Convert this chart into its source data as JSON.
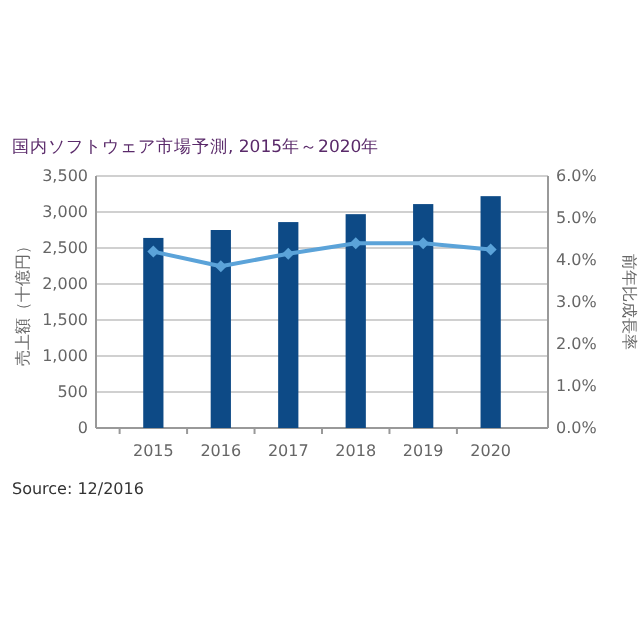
{
  "chart_data": {
    "type": "bar",
    "title": "国内ソフトウェア市場予測, 2015年～2020年",
    "categories": [
      "2015",
      "2016",
      "2017",
      "2018",
      "2019",
      "2020"
    ],
    "series": [
      {
        "color": "#0d4a86",
        "values": [
          2640,
          2750,
          2860,
          2970,
          3110,
          3220
        ]
      },
      {
        "type": "line",
        "axis": "y2",
        "color": "#5ba3d9",
        "marker": "diamond",
        "values": [
          4.2,
          3.85,
          4.15,
          4.4,
          4.4,
          4.25
        ]
      }
    ],
    "ylabel": "売上額（十億円）",
    "y2label": "前年比成長率",
    "ylim": [
      0,
      3500
    ],
    "yticks": [
      0,
      {
        "value": 500,
        "label": "500"
      },
      {
        "value": 1000,
        "label": "1,000"
      },
      {
        "value": 1500,
        "label": "1,500"
      },
      {
        "value": 2000,
        "label": "2,000"
      },
      {
        "value": 2500,
        "label": "2,500"
      },
      {
        "value": 3000,
        "label": "3,000"
      },
      {
        "value": 3500,
        "label": "3,500"
      }
    ],
    "y2lim": [
      0,
      6
    ],
    "y2ticks": [
      {
        "value": 0,
        "label": "0.0%"
      },
      {
        "value": 1,
        "label": "1.0%"
      },
      {
        "value": 2,
        "label": "2.0%"
      },
      {
        "value": 3,
        "label": "3.0%"
      },
      {
        "value": 4,
        "label": "4.0%"
      },
      {
        "value": 5,
        "label": "5.0%"
      },
      {
        "value": 6,
        "label": "6.0%"
      }
    ],
    "grid": "y",
    "annotations": [
      "Source: 12/2016"
    ]
  }
}
